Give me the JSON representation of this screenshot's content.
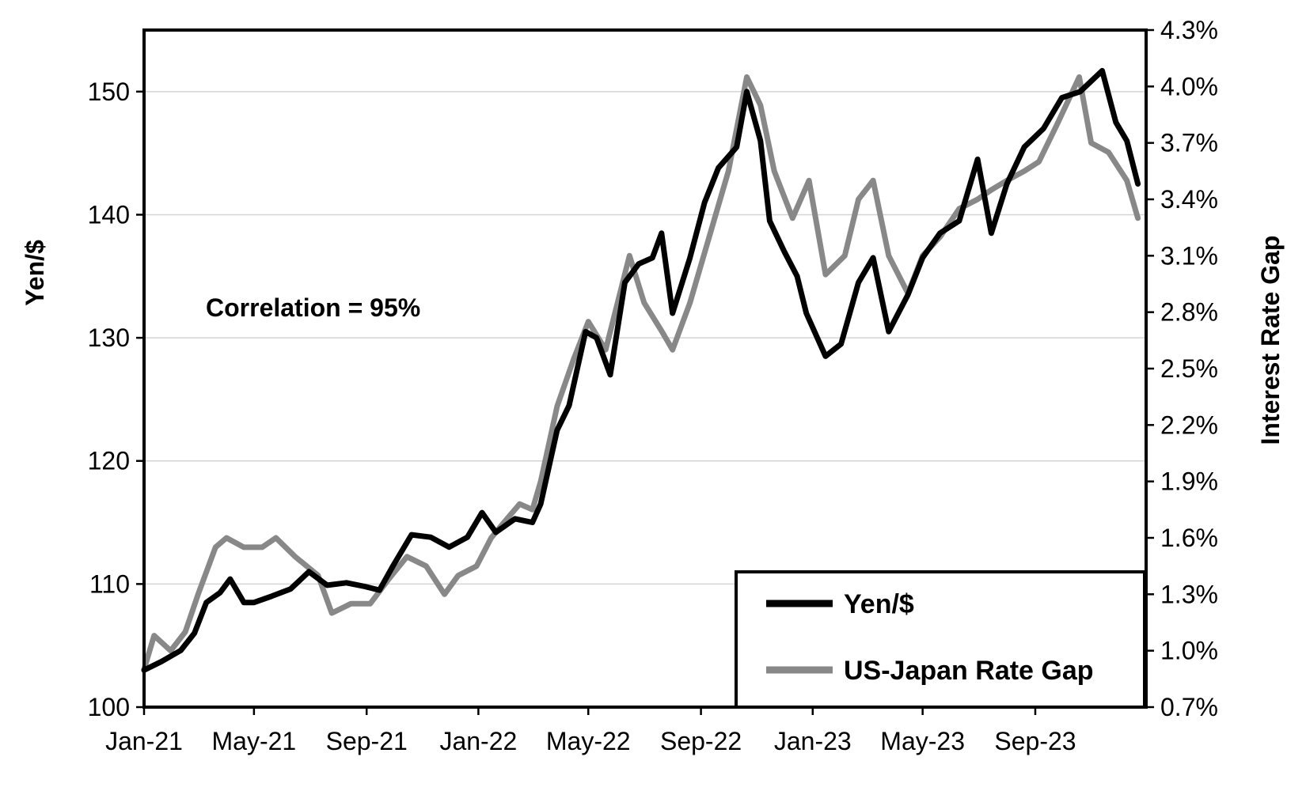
{
  "chart_data": {
    "type": "line",
    "title": "",
    "xlabel": "",
    "ylabel": "Yen/$",
    "y2label": "Interest Rate Gap",
    "annotation": "Correlation = 95%",
    "x_range": [
      "2021-01-01",
      "2023-12-31"
    ],
    "ylim": [
      100,
      155
    ],
    "y2lim": [
      0.7,
      4.3
    ],
    "x_ticks": [
      {
        "date": "2021-01-01",
        "label": "Jan-21"
      },
      {
        "date": "2021-05-01",
        "label": "May-21"
      },
      {
        "date": "2021-09-01",
        "label": "Sep-21"
      },
      {
        "date": "2022-01-01",
        "label": "Jan-22"
      },
      {
        "date": "2022-05-01",
        "label": "May-22"
      },
      {
        "date": "2022-09-01",
        "label": "Sep-22"
      },
      {
        "date": "2023-01-01",
        "label": "Jan-23"
      },
      {
        "date": "2023-05-01",
        "label": "May-23"
      },
      {
        "date": "2023-09-01",
        "label": "Sep-23"
      }
    ],
    "y_ticks": [
      100,
      110,
      120,
      130,
      140,
      150
    ],
    "y2_ticks": [
      "0.7%",
      "1.0%",
      "1.3%",
      "1.6%",
      "1.9%",
      "2.2%",
      "2.5%",
      "2.8%",
      "3.1%",
      "3.4%",
      "3.7%",
      "4.0%",
      "4.3%"
    ],
    "grid": true,
    "legend_position": "bottom-right",
    "series": [
      {
        "name": "Yen/$",
        "axis": "left",
        "color": "#000000",
        "points": [
          [
            "2021-01-01",
            103.0
          ],
          [
            "2021-01-20",
            103.7
          ],
          [
            "2021-02-10",
            104.6
          ],
          [
            "2021-02-25",
            106.0
          ],
          [
            "2021-03-10",
            108.5
          ],
          [
            "2021-03-25",
            109.3
          ],
          [
            "2021-04-05",
            110.4
          ],
          [
            "2021-04-20",
            108.5
          ],
          [
            "2021-05-01",
            108.5
          ],
          [
            "2021-05-20",
            109.0
          ],
          [
            "2021-06-10",
            109.6
          ],
          [
            "2021-06-30",
            111.0
          ],
          [
            "2021-07-20",
            109.9
          ],
          [
            "2021-08-10",
            110.1
          ],
          [
            "2021-08-30",
            109.8
          ],
          [
            "2021-09-15",
            109.5
          ],
          [
            "2021-09-30",
            111.5
          ],
          [
            "2021-10-20",
            114.0
          ],
          [
            "2021-11-10",
            113.8
          ],
          [
            "2021-11-30",
            113.0
          ],
          [
            "2021-12-20",
            113.8
          ],
          [
            "2022-01-05",
            115.8
          ],
          [
            "2022-01-20",
            114.2
          ],
          [
            "2022-02-10",
            115.3
          ],
          [
            "2022-03-01",
            115.0
          ],
          [
            "2022-03-10",
            116.5
          ],
          [
            "2022-03-28",
            122.5
          ],
          [
            "2022-04-10",
            124.5
          ],
          [
            "2022-04-28",
            130.5
          ],
          [
            "2022-05-10",
            130.0
          ],
          [
            "2022-05-25",
            127.0
          ],
          [
            "2022-06-10",
            134.5
          ],
          [
            "2022-06-25",
            136.0
          ],
          [
            "2022-07-10",
            136.5
          ],
          [
            "2022-07-20",
            138.5
          ],
          [
            "2022-08-01",
            132.0
          ],
          [
            "2022-08-20",
            136.5
          ],
          [
            "2022-09-05",
            141.0
          ],
          [
            "2022-09-20",
            143.8
          ],
          [
            "2022-10-10",
            145.5
          ],
          [
            "2022-10-21",
            150.0
          ],
          [
            "2022-11-05",
            146.0
          ],
          [
            "2022-11-15",
            139.5
          ],
          [
            "2022-12-01",
            137.0
          ],
          [
            "2022-12-15",
            135.0
          ],
          [
            "2022-12-25",
            132.0
          ],
          [
            "2023-01-15",
            128.5
          ],
          [
            "2023-02-01",
            129.5
          ],
          [
            "2023-02-20",
            134.5
          ],
          [
            "2023-03-08",
            136.5
          ],
          [
            "2023-03-25",
            130.5
          ],
          [
            "2023-04-15",
            133.5
          ],
          [
            "2023-05-01",
            136.5
          ],
          [
            "2023-05-20",
            138.5
          ],
          [
            "2023-06-10",
            139.5
          ],
          [
            "2023-06-30",
            144.5
          ],
          [
            "2023-07-15",
            138.5
          ],
          [
            "2023-08-01",
            142.5
          ],
          [
            "2023-08-20",
            145.5
          ],
          [
            "2023-09-10",
            147.0
          ],
          [
            "2023-09-30",
            149.5
          ],
          [
            "2023-10-20",
            150.0
          ],
          [
            "2023-11-13",
            151.7
          ],
          [
            "2023-11-28",
            147.5
          ],
          [
            "2023-12-10",
            146.0
          ],
          [
            "2023-12-22",
            142.5
          ]
        ]
      },
      {
        "name": "US-Japan Rate Gap",
        "axis": "right",
        "color": "#888888",
        "points": [
          [
            "2021-01-01",
            0.9
          ],
          [
            "2021-01-12",
            1.08
          ],
          [
            "2021-01-30",
            1.0
          ],
          [
            "2021-02-15",
            1.1
          ],
          [
            "2021-03-01",
            1.3
          ],
          [
            "2021-03-20",
            1.55
          ],
          [
            "2021-04-01",
            1.6
          ],
          [
            "2021-04-20",
            1.55
          ],
          [
            "2021-05-10",
            1.55
          ],
          [
            "2021-05-25",
            1.6
          ],
          [
            "2021-06-15",
            1.5
          ],
          [
            "2021-07-10",
            1.4
          ],
          [
            "2021-07-25",
            1.2
          ],
          [
            "2021-08-15",
            1.25
          ],
          [
            "2021-09-05",
            1.25
          ],
          [
            "2021-09-25",
            1.38
          ],
          [
            "2021-10-15",
            1.5
          ],
          [
            "2021-11-05",
            1.45
          ],
          [
            "2021-11-25",
            1.3
          ],
          [
            "2021-12-10",
            1.4
          ],
          [
            "2021-12-30",
            1.45
          ],
          [
            "2022-01-15",
            1.6
          ],
          [
            "2022-02-01",
            1.7
          ],
          [
            "2022-02-15",
            1.78
          ],
          [
            "2022-03-01",
            1.75
          ],
          [
            "2022-03-10",
            1.9
          ],
          [
            "2022-03-28",
            2.3
          ],
          [
            "2022-04-15",
            2.55
          ],
          [
            "2022-05-01",
            2.75
          ],
          [
            "2022-05-20",
            2.6
          ],
          [
            "2022-06-15",
            3.1
          ],
          [
            "2022-07-01",
            2.85
          ],
          [
            "2022-07-20",
            2.7
          ],
          [
            "2022-08-01",
            2.6
          ],
          [
            "2022-08-20",
            2.85
          ],
          [
            "2022-09-10",
            3.2
          ],
          [
            "2022-10-01",
            3.55
          ],
          [
            "2022-10-21",
            4.05
          ],
          [
            "2022-11-05",
            3.9
          ],
          [
            "2022-11-20",
            3.55
          ],
          [
            "2022-12-10",
            3.3
          ],
          [
            "2022-12-28",
            3.5
          ],
          [
            "2023-01-15",
            3.0
          ],
          [
            "2023-02-05",
            3.1
          ],
          [
            "2023-02-20",
            3.4
          ],
          [
            "2023-03-08",
            3.5
          ],
          [
            "2023-03-25",
            3.1
          ],
          [
            "2023-04-15",
            2.9
          ],
          [
            "2023-05-01",
            3.1
          ],
          [
            "2023-05-20",
            3.2
          ],
          [
            "2023-06-10",
            3.35
          ],
          [
            "2023-06-30",
            3.4
          ],
          [
            "2023-07-15",
            3.45
          ],
          [
            "2023-08-01",
            3.5
          ],
          [
            "2023-08-20",
            3.55
          ],
          [
            "2023-09-05",
            3.6
          ],
          [
            "2023-09-25",
            3.8
          ],
          [
            "2023-10-19",
            4.05
          ],
          [
            "2023-11-01",
            3.7
          ],
          [
            "2023-11-20",
            3.65
          ],
          [
            "2023-12-10",
            3.5
          ],
          [
            "2023-12-22",
            3.3
          ]
        ]
      }
    ]
  }
}
